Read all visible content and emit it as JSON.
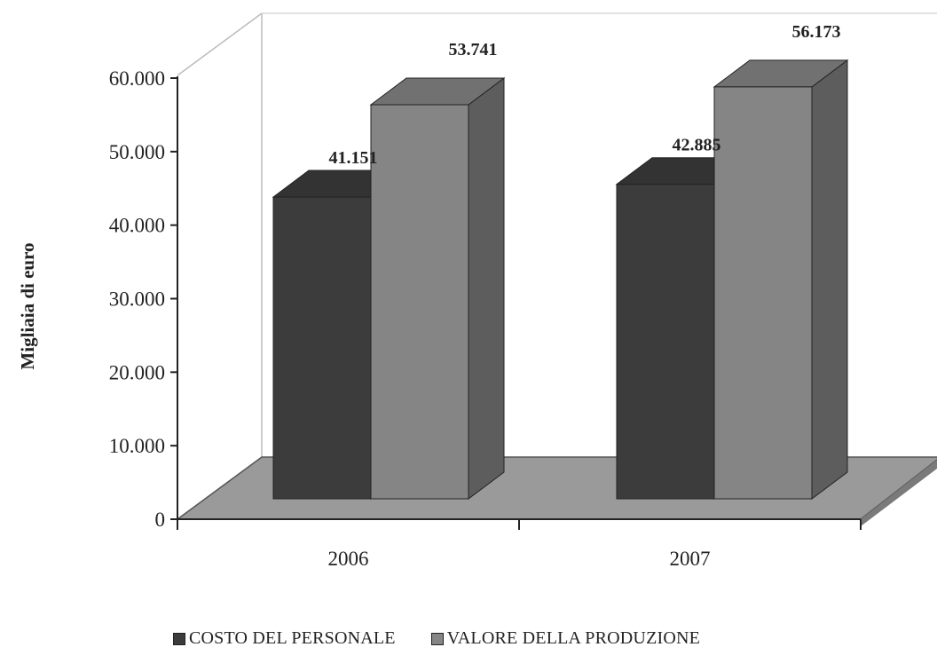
{
  "chart_data": {
    "type": "bar",
    "categories": [
      "2006",
      "2007"
    ],
    "series": [
      {
        "name": "COSTO DEL PERSONALE",
        "values": [
          41151,
          42885
        ],
        "labels": [
          "41.151",
          "42.885"
        ],
        "color": "#3c3c3c"
      },
      {
        "name": "VALORE DELLA PRODUZIONE",
        "values": [
          53741,
          56173
        ],
        "labels": [
          "53.741",
          "56.173"
        ],
        "color": "#858585"
      }
    ],
    "ylabel": "Migliaia di euro",
    "xlabel": "",
    "ylim": [
      0,
      60000
    ],
    "yticks": [
      0,
      10000,
      20000,
      30000,
      40000,
      50000,
      60000
    ],
    "ytick_labels": [
      "0",
      "10.000",
      "20.000",
      "30.000",
      "40.000",
      "50.000",
      "60.000"
    ],
    "legend_position": "bottom",
    "style": "3d-clustered-column",
    "grid": false
  }
}
